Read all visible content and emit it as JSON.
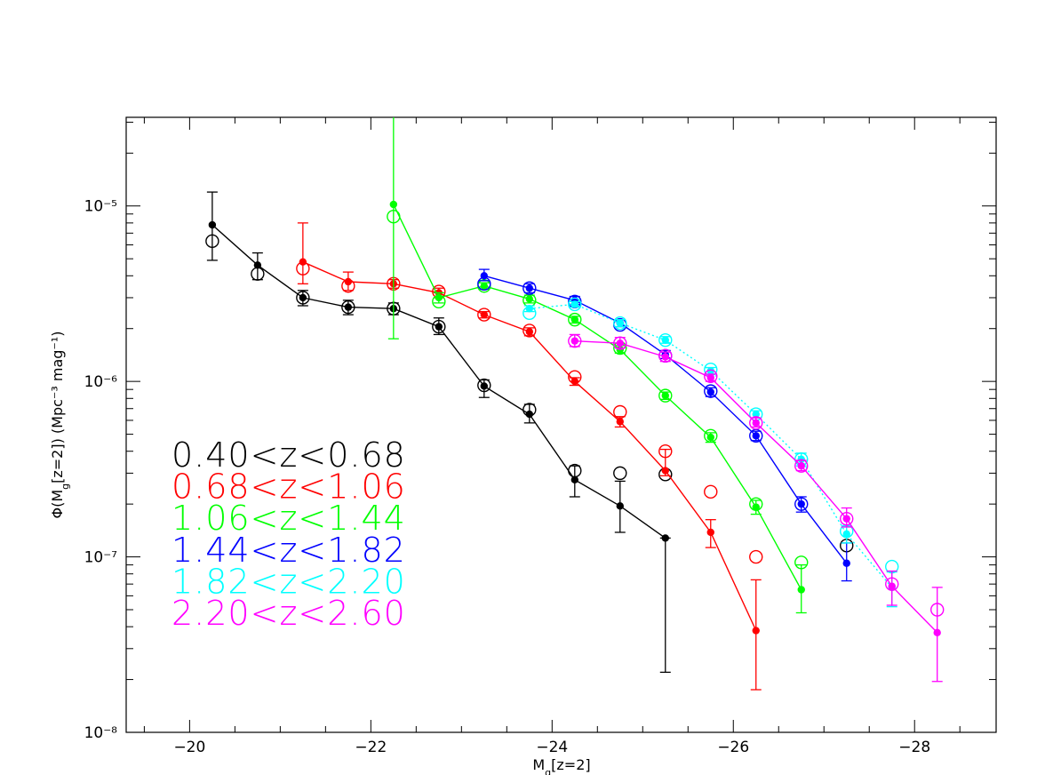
{
  "chart_data": {
    "type": "scatter",
    "xlabel": "M_g[z=2]",
    "ylabel": "Φ(M_g[z=2]) (Mpc⁻³ mag⁻¹)",
    "xlim": [
      -19.3,
      -28.9
    ],
    "ylim": [
      1e-08,
      3.2e-05
    ],
    "yscale": "log",
    "grid": false,
    "legend_position": "left",
    "x_ticks": [
      -20,
      -22,
      -24,
      -26,
      -28
    ],
    "x_tick_labels": [
      "−20",
      "−22",
      "−24",
      "−26",
      "−28"
    ],
    "y_ticks": [
      1e-08,
      1e-07,
      1e-06,
      1e-05
    ],
    "y_tick_labels": [
      "10⁻⁸",
      "10⁻⁷",
      "10⁻⁶",
      "10⁻⁵"
    ],
    "series": [
      {
        "name": "0.40<z<0.68",
        "color": "#000000",
        "line": "solid",
        "filled": {
          "x": [
            -20.25,
            -20.75,
            -21.25,
            -21.75,
            -22.25,
            -22.75,
            -23.25,
            -23.75,
            -24.25,
            -24.75,
            -25.25
          ],
          "y": [
            7.8e-06,
            4.6e-06,
            3e-06,
            2.65e-06,
            2.6e-06,
            2.05e-06,
            9.4e-07,
            6.5e-07,
            2.75e-07,
            1.95e-07,
            1.28e-07
          ],
          "err_lo": [
            4.9e-06,
            3.8e-06,
            2.7e-06,
            2.4e-06,
            2.4e-06,
            1.85e-06,
            8.1e-07,
            5.8e-07,
            2.2e-07,
            1.38e-07,
            2.2e-08
          ],
          "err_hi": [
            1.2e-05,
            5.4e-06,
            3.3e-06,
            2.9e-06,
            2.8e-06,
            2.3e-06,
            1.02e-06,
            7.4e-07,
            3.3e-07,
            2.7e-07,
            1.28e-07
          ]
        },
        "open": {
          "x": [
            -20.25,
            -20.75,
            -21.25,
            -21.75,
            -22.25,
            -22.75,
            -23.25,
            -23.75,
            -24.25,
            -24.75,
            -25.25,
            -27.25
          ],
          "y": [
            6.3e-06,
            4.1e-06,
            3e-06,
            2.65e-06,
            2.6e-06,
            2.05e-06,
            9.5e-07,
            6.9e-07,
            3.1e-07,
            3e-07,
            2.95e-07,
            1.16e-07
          ]
        }
      },
      {
        "name": "0.68<z<1.06",
        "color": "#ff0000",
        "line": "solid",
        "filled": {
          "x": [
            -21.25,
            -21.75,
            -22.25,
            -22.75,
            -23.25,
            -23.75,
            -24.25,
            -24.75,
            -25.25,
            -25.75,
            -26.25
          ],
          "y": [
            4.8e-06,
            3.7e-06,
            3.6e-06,
            3.2e-06,
            2.4e-06,
            1.92e-06,
            1e-06,
            5.9e-07,
            3.1e-07,
            1.38e-07,
            3.8e-08
          ],
          "err_lo": [
            3.6e-06,
            3.3e-06,
            3.4e-06,
            3e-06,
            2.3e-06,
            1.82e-06,
            9.5e-07,
            5.5e-07,
            2.9e-07,
            1.13e-07,
            1.75e-08
          ],
          "err_hi": [
            8e-06,
            4.2e-06,
            3.8e-06,
            3.4e-06,
            2.5e-06,
            2.02e-06,
            1.05e-06,
            6.3e-07,
            4.1e-07,
            1.63e-07,
            7.4e-08
          ]
        },
        "open": {
          "x": [
            -21.25,
            -21.75,
            -22.25,
            -22.75,
            -23.25,
            -23.75,
            -24.25,
            -24.75,
            -25.25,
            -25.75,
            -26.25
          ],
          "y": [
            4.4e-06,
            3.5e-06,
            3.6e-06,
            3.25e-06,
            2.4e-06,
            1.95e-06,
            1.06e-06,
            6.7e-07,
            4e-07,
            2.35e-07,
            1e-07
          ]
        }
      },
      {
        "name": "1.06<z<1.44",
        "color": "#00ff00",
        "line": "solid",
        "filled": {
          "x": [
            -22.25,
            -22.75,
            -23.25,
            -23.75,
            -24.25,
            -24.75,
            -25.25,
            -25.75,
            -26.25,
            -26.75
          ],
          "y": [
            1.02e-05,
            3e-06,
            3.5e-06,
            2.95e-06,
            2.25e-06,
            1.52e-06,
            8.3e-07,
            4.8e-07,
            1.92e-07,
            6.5e-08
          ],
          "err_lo": [
            1.75e-06,
            2.8e-06,
            3.35e-06,
            2.8e-06,
            2.15e-06,
            1.45e-06,
            7.9e-07,
            4.5e-07,
            1.75e-07,
            4.8e-08
          ],
          "err_hi": [
            3.2e-05,
            3.2e-06,
            3.65e-06,
            3.1e-06,
            2.35e-06,
            1.6e-06,
            8.7e-07,
            5.1e-07,
            2.1e-07,
            9e-08
          ]
        },
        "open": {
          "x": [
            -22.25,
            -22.75,
            -23.25,
            -23.75,
            -24.25,
            -24.75,
            -25.25,
            -25.75,
            -26.25,
            -26.75
          ],
          "y": [
            8.7e-06,
            2.85e-06,
            3.5e-06,
            2.9e-06,
            2.25e-06,
            1.55e-06,
            8.3e-07,
            4.9e-07,
            2e-07,
            9.3e-08
          ]
        }
      },
      {
        "name": "1.44<z<1.82",
        "color": "#0000ff",
        "line": "solid",
        "filled": {
          "x": [
            -23.25,
            -23.75,
            -24.25,
            -24.75,
            -25.25,
            -25.75,
            -26.25,
            -26.75,
            -27.25
          ],
          "y": [
            4e-06,
            3.4e-06,
            2.9e-06,
            2.15e-06,
            1.42e-06,
            8.7e-07,
            4.9e-07,
            2e-07,
            9.2e-08
          ],
          "err_lo": [
            3.75e-06,
            3.2e-06,
            2.75e-06,
            2.05e-06,
            1.35e-06,
            8.2e-07,
            4.6e-07,
            1.8e-07,
            7.3e-08
          ],
          "err_hi": [
            4.35e-06,
            3.6e-06,
            3.05e-06,
            2.25e-06,
            1.5e-06,
            9.2e-07,
            5.2e-07,
            2.2e-07,
            1.2e-07
          ]
        },
        "open": {
          "x": [
            -23.25,
            -23.75,
            -24.25,
            -24.75,
            -25.25,
            -25.75,
            -26.25,
            -26.75
          ],
          "y": [
            3.6e-06,
            3.4e-06,
            2.85e-06,
            2.1e-06,
            1.4e-06,
            8.8e-07,
            4.9e-07,
            2e-07
          ]
        }
      },
      {
        "name": "1.82<z<2.20",
        "color": "#00ffff",
        "line": "dotted",
        "filled": {
          "x": [
            -23.75,
            -24.25,
            -24.75,
            -25.25,
            -25.75,
            -26.25,
            -26.75,
            -27.25,
            -27.75
          ],
          "y": [
            2.6e-06,
            2.75e-06,
            2.15e-06,
            1.72e-06,
            1.15e-06,
            6.5e-07,
            3.6e-07,
            1.35e-07,
            6.7e-08
          ],
          "err_lo": [
            2.5e-06,
            2.65e-06,
            2.05e-06,
            1.65e-06,
            1.1e-06,
            6.2e-07,
            3.3e-07,
            1.2e-07,
            5.2e-08
          ],
          "err_hi": [
            2.7e-06,
            2.85e-06,
            2.25e-06,
            1.8e-06,
            1.2e-06,
            6.8e-07,
            3.9e-07,
            1.5e-07,
            8.2e-08
          ]
        },
        "open": {
          "x": [
            -23.75,
            -24.25,
            -24.75,
            -25.25,
            -25.75,
            -26.25,
            -26.75,
            -27.25,
            -27.75
          ],
          "y": [
            2.45e-06,
            2.75e-06,
            2.15e-06,
            1.72e-06,
            1.17e-06,
            6.5e-07,
            3.6e-07,
            1.4e-07,
            8.8e-08
          ]
        }
      },
      {
        "name": "2.20<z<2.60",
        "color": "#ff00ff",
        "line": "solid",
        "filled": {
          "x": [
            -24.25,
            -24.75,
            -25.25,
            -25.75,
            -26.25,
            -26.75,
            -27.25,
            -27.75,
            -28.25
          ],
          "y": [
            1.7e-06,
            1.65e-06,
            1.38e-06,
            1.05e-06,
            5.8e-07,
            3.3e-07,
            1.65e-07,
            6.8e-08,
            3.7e-08
          ],
          "err_lo": [
            1.58e-06,
            1.55e-06,
            1.3e-06,
            1e-06,
            5.5e-07,
            3.1e-07,
            1.48e-07,
            5.3e-08,
            1.95e-08
          ],
          "err_hi": [
            1.85e-06,
            1.78e-06,
            1.47e-06,
            1.1e-06,
            6.2e-07,
            3.55e-07,
            1.9e-07,
            8.3e-08,
            6.7e-08
          ]
        },
        "open": {
          "x": [
            -24.25,
            -24.75,
            -25.25,
            -25.75,
            -26.25,
            -26.75,
            -27.25,
            -27.75,
            -28.25
          ],
          "y": [
            1.7e-06,
            1.65e-06,
            1.4e-06,
            1.07e-06,
            5.8e-07,
            3.3e-07,
            1.65e-07,
            7e-08,
            5e-08
          ]
        }
      }
    ]
  }
}
